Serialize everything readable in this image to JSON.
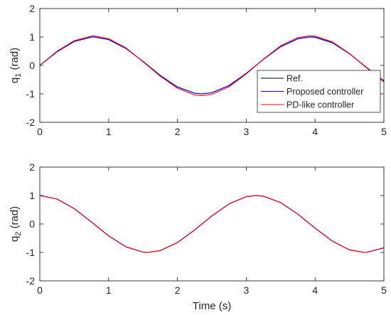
{
  "chart_data": [
    {
      "type": "line",
      "title": "",
      "xlabel": "",
      "ylabel": "q_1 (rad)",
      "ylabel_base": "q",
      "ylabel_sub": "1",
      "ylabel_unit": " (rad)",
      "xlim": [
        0,
        5
      ],
      "ylim": [
        -2,
        2
      ],
      "xticks": [
        0,
        1,
        2,
        3,
        4,
        5
      ],
      "yticks": [
        -2,
        -1,
        0,
        1,
        2
      ],
      "xtick_labels": [
        "0",
        "1",
        "2",
        "3",
        "4",
        "5"
      ],
      "ytick_labels": [
        "-2",
        "-1",
        "0",
        "1",
        "2"
      ],
      "grid": false,
      "legend": "center-right",
      "series": [
        {
          "name": "Ref.",
          "color": "#000000",
          "x": [
            0,
            0.25,
            0.5,
            0.75,
            0.785,
            1.0,
            1.25,
            1.5,
            1.75,
            2.0,
            2.25,
            2.356,
            2.5,
            2.75,
            3.0,
            3.25,
            3.5,
            3.75,
            3.927,
            4.0,
            4.25,
            4.5,
            4.75,
            5.0
          ],
          "y": [
            0,
            0.479,
            0.841,
            0.997,
            1.0,
            0.909,
            0.598,
            0.141,
            -0.351,
            -0.757,
            -0.978,
            -1.0,
            -0.959,
            -0.706,
            -0.279,
            0.215,
            0.657,
            0.938,
            1.0,
            0.989,
            0.798,
            0.412,
            -0.075,
            -0.544
          ]
        },
        {
          "name": "Proposed controller",
          "color": "#0000ff",
          "x": [
            0,
            0.25,
            0.5,
            0.75,
            0.785,
            1.0,
            1.25,
            1.5,
            1.75,
            2.0,
            2.25,
            2.356,
            2.5,
            2.75,
            3.0,
            3.25,
            3.5,
            3.75,
            3.927,
            4.0,
            4.25,
            4.5,
            4.75,
            5.0
          ],
          "y": [
            0,
            0.479,
            0.841,
            0.997,
            1.0,
            0.909,
            0.598,
            0.141,
            -0.351,
            -0.757,
            -0.978,
            -1.0,
            -0.959,
            -0.706,
            -0.279,
            0.215,
            0.657,
            0.938,
            1.0,
            0.989,
            0.798,
            0.412,
            -0.075,
            -0.544
          ]
        },
        {
          "name": "PD-like controller",
          "color": "#ff0000",
          "x": [
            0,
            0.25,
            0.5,
            0.75,
            0.785,
            1.0,
            1.25,
            1.5,
            1.75,
            2.0,
            2.25,
            2.356,
            2.5,
            2.75,
            3.0,
            3.25,
            3.5,
            3.75,
            3.927,
            4.0,
            4.25,
            4.5,
            4.75,
            5.0
          ],
          "y": [
            0,
            0.5,
            0.87,
            1.03,
            1.04,
            0.94,
            0.62,
            0.13,
            -0.38,
            -0.8,
            -1.04,
            -1.06,
            -1.02,
            -0.75,
            -0.3,
            0.22,
            0.69,
            0.98,
            1.04,
            1.03,
            0.83,
            0.42,
            -0.09,
            -0.58
          ]
        }
      ]
    },
    {
      "type": "line",
      "title": "",
      "xlabel": "Time (s)",
      "ylabel": "q_2 (rad)",
      "ylabel_base": "q",
      "ylabel_sub": "2",
      "ylabel_unit": " (rad)",
      "xlim": [
        0,
        5
      ],
      "ylim": [
        -2,
        2
      ],
      "xticks": [
        0,
        1,
        2,
        3,
        4,
        5
      ],
      "yticks": [
        -2,
        -1,
        0,
        1,
        2
      ],
      "xtick_labels": [
        "0",
        "1",
        "2",
        "3",
        "4",
        "5"
      ],
      "ytick_labels": [
        "-2",
        "-1",
        "0",
        "1",
        "2"
      ],
      "grid": false,
      "series": [
        {
          "color": "#000000",
          "x": [
            0,
            0.25,
            0.5,
            0.75,
            1.0,
            1.25,
            1.5,
            1.571,
            1.75,
            2.0,
            2.25,
            2.5,
            2.75,
            3.0,
            3.142,
            3.25,
            3.5,
            3.75,
            4.0,
            4.25,
            4.5,
            4.712,
            4.75,
            5.0
          ],
          "y": [
            1.0,
            0.878,
            0.54,
            0.071,
            -0.416,
            -0.801,
            -0.99,
            -1.0,
            -0.936,
            -0.654,
            -0.211,
            0.284,
            0.709,
            0.96,
            1.0,
            0.976,
            0.754,
            0.346,
            -0.146,
            -0.602,
            -0.911,
            -1.0,
            -0.997,
            -0.839
          ]
        },
        {
          "color": "#0000ff",
          "x": [
            0,
            0.25,
            0.5,
            0.75,
            1.0,
            1.25,
            1.5,
            1.571,
            1.75,
            2.0,
            2.25,
            2.5,
            2.75,
            3.0,
            3.142,
            3.25,
            3.5,
            3.75,
            4.0,
            4.25,
            4.5,
            4.712,
            4.75,
            5.0
          ],
          "y": [
            1.0,
            0.878,
            0.54,
            0.071,
            -0.416,
            -0.801,
            -0.99,
            -1.0,
            -0.936,
            -0.654,
            -0.211,
            0.284,
            0.709,
            0.96,
            1.0,
            0.976,
            0.754,
            0.346,
            -0.146,
            -0.602,
            -0.911,
            -1.0,
            -0.997,
            -0.839
          ]
        },
        {
          "color": "#ff0000",
          "x": [
            0,
            0.25,
            0.5,
            0.75,
            1.0,
            1.25,
            1.5,
            1.571,
            1.75,
            2.0,
            2.25,
            2.5,
            2.75,
            3.0,
            3.142,
            3.25,
            3.5,
            3.75,
            4.0,
            4.25,
            4.5,
            4.712,
            4.75,
            5.0
          ],
          "y": [
            1.0,
            0.878,
            0.54,
            0.071,
            -0.416,
            -0.801,
            -0.99,
            -1.0,
            -0.936,
            -0.654,
            -0.211,
            0.284,
            0.709,
            0.96,
            1.0,
            0.976,
            0.754,
            0.346,
            -0.146,
            -0.602,
            -0.911,
            -1.0,
            -0.997,
            -0.839
          ]
        }
      ]
    }
  ]
}
